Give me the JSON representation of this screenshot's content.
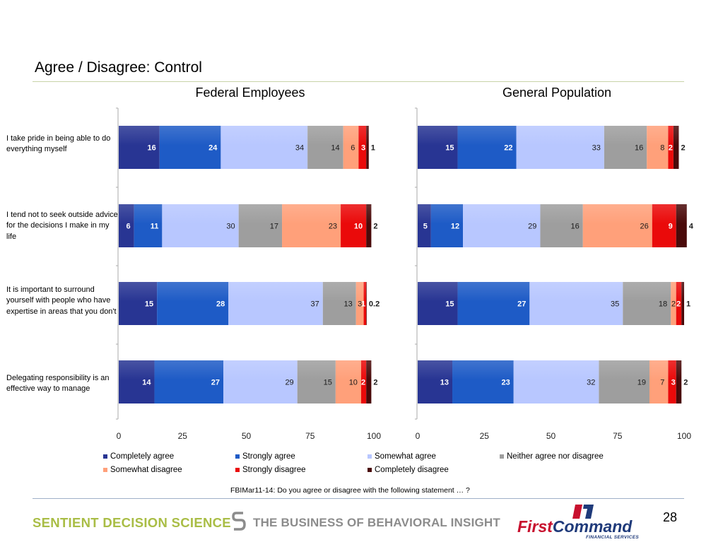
{
  "page": {
    "title": "Agree / Disagree: Control",
    "footnote": "FBIMar11-14: Do you agree or disagree with the following statement … ?",
    "page_number": "28"
  },
  "footer": {
    "brand_left": "SENTIENT DECISION SCIENCE",
    "tagline": "THE BUSINESS OF BEHAVIORAL INSIGHT",
    "logo_first": "First",
    "logo_command": "Command",
    "logo_subtitle": "FINANCIAL SERVICES"
  },
  "colors": {
    "Completely agree": "#283593",
    "Strongly agree": "#1e5bc6",
    "Somewhat agree": "#b8c7ff",
    "Neither agree nor disagree": "#9e9e9e",
    "Somewhat disagree": "#ffa07a",
    "Strongly disagree": "#ea0a0a",
    "Completely disagree": "#4a0a0a"
  },
  "chart_data": {
    "type": "bar",
    "orientation": "horizontal",
    "stacked": true,
    "xlim": [
      0,
      100
    ],
    "x_ticks": [
      "0",
      "25",
      "50",
      "75",
      "100"
    ],
    "categories": [
      "I take pride in being able to do everything myself",
      "I tend not to seek outside advice for the decisions I make in my life",
      "It is important to surround yourself with people who have expertise in areas that you don't",
      "Delegating responsibility is an effective way to manage"
    ],
    "legend_position": "bottom",
    "series_names": [
      "Completely agree",
      "Strongly agree",
      "Somewhat agree",
      "Neither agree nor disagree",
      "Somewhat disagree",
      "Strongly disagree",
      "Completely disagree"
    ],
    "panels": [
      {
        "title": "Federal Employees",
        "rows": [
          {
            "values": [
              16,
              24,
              34,
              14,
              6,
              3,
              1
            ],
            "labels": [
              "16",
              "24",
              "34",
              "14",
              "6",
              "3",
              "1"
            ]
          },
          {
            "values": [
              6,
              11,
              30,
              17,
              23,
              10,
              2
            ],
            "labels": [
              "6",
              "11",
              "30",
              "17",
              "23",
              "10",
              "2"
            ]
          },
          {
            "values": [
              15,
              28,
              37,
              13,
              3,
              1,
              0.2
            ],
            "labels": [
              "15",
              "28",
              "37",
              "13",
              "3",
              "1",
              "0.2"
            ]
          },
          {
            "values": [
              14,
              27,
              29,
              15,
              10,
              2,
              2
            ],
            "labels": [
              "14",
              "27",
              "29",
              "15",
              "10",
              "2",
              "2"
            ]
          }
        ]
      },
      {
        "title": "General Population",
        "rows": [
          {
            "values": [
              15,
              22,
              33,
              16,
              8,
              2,
              2
            ],
            "labels": [
              "15",
              "22",
              "33",
              "16",
              "8",
              "2",
              "2"
            ]
          },
          {
            "values": [
              5,
              12,
              29,
              16,
              26,
              9,
              4
            ],
            "labels": [
              "5",
              "12",
              "29",
              "16",
              "26",
              "9",
              "4"
            ]
          },
          {
            "values": [
              15,
              27,
              35,
              18,
              2,
              2,
              1
            ],
            "labels": [
              "15",
              "27",
              "35",
              "18",
              "2",
              "2",
              "1"
            ]
          },
          {
            "values": [
              13,
              23,
              32,
              19,
              7,
              3,
              2
            ],
            "labels": [
              "13",
              "23",
              "32",
              "19",
              "7",
              "3",
              "2"
            ]
          }
        ]
      }
    ]
  }
}
